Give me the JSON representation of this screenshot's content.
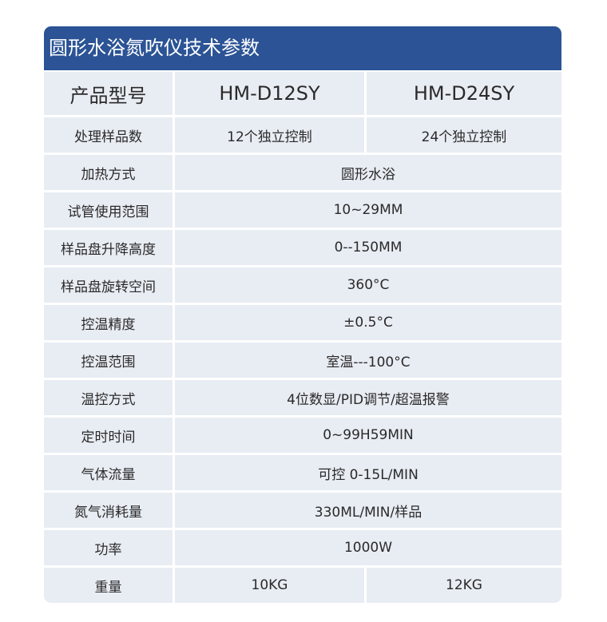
{
  "title": "圆形水浴氮吹仪技术参数",
  "header_row": {
    "label": "产品型号",
    "models": [
      "HM-D12SY",
      "HM-D24SY"
    ]
  },
  "rows": [
    {
      "label": "处理样品数",
      "values": [
        "12个独立控制",
        "24个独立控制"
      ]
    },
    {
      "label": "加热方式",
      "value": "圆形水浴"
    },
    {
      "label": "试管使用范围",
      "value": "10~29MM"
    },
    {
      "label": "样品盘升降高度",
      "value": "0--150MM"
    },
    {
      "label": "样品盘旋转空间",
      "value": "360°C"
    },
    {
      "label": "控温精度",
      "value": "±0.5°C"
    },
    {
      "label": "控温范围",
      "value": "室温---100°C"
    },
    {
      "label": "温控方式",
      "value": "4位数显/PID调节/超温报警"
    },
    {
      "label": "定时时间",
      "value": "0~99H59MIN"
    },
    {
      "label": "气体流量",
      "value": "可控  0-15L/MIN"
    },
    {
      "label": "氮气消耗量",
      "value": "330ML/MIN/样品"
    },
    {
      "label": "功率",
      "value": "1000W"
    },
    {
      "label": "重量",
      "values": [
        "10KG",
        "12KG"
      ]
    }
  ],
  "colors": {
    "header": "#2b5395",
    "cell": "#e8ecf3"
  }
}
